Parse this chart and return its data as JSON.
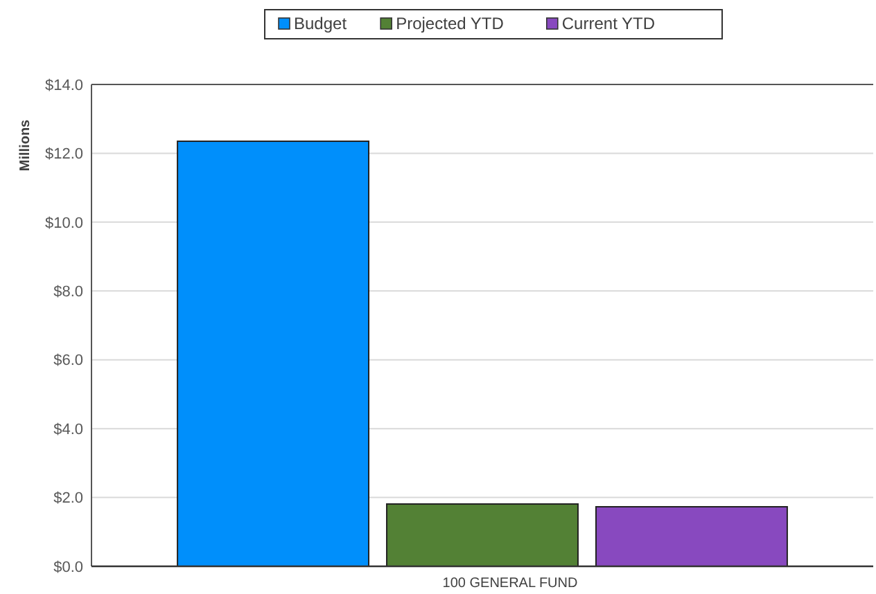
{
  "chart_data": {
    "type": "bar",
    "ylabel": "Millions",
    "categories": [
      "100 GENERAL FUND"
    ],
    "series": [
      {
        "name": "Budget",
        "color": "#008ffb",
        "values": [
          12.35
        ]
      },
      {
        "name": "Projected YTD",
        "color": "#538135",
        "values": [
          1.81
        ]
      },
      {
        "name": "Current YTD",
        "color": "#8849bf",
        "values": [
          1.73
        ]
      }
    ],
    "ylim": [
      0,
      14
    ],
    "yticks": [
      {
        "value": 0,
        "label": "$0.0"
      },
      {
        "value": 2,
        "label": "$2.0"
      },
      {
        "value": 4,
        "label": "$4.0"
      },
      {
        "value": 6,
        "label": "$6.0"
      },
      {
        "value": 8,
        "label": "$8.0"
      },
      {
        "value": 10,
        "label": "$10.0"
      },
      {
        "value": 12,
        "label": "$12.0"
      },
      {
        "value": 14,
        "label": "$14.0"
      }
    ],
    "grid": "y",
    "legend": "top"
  }
}
